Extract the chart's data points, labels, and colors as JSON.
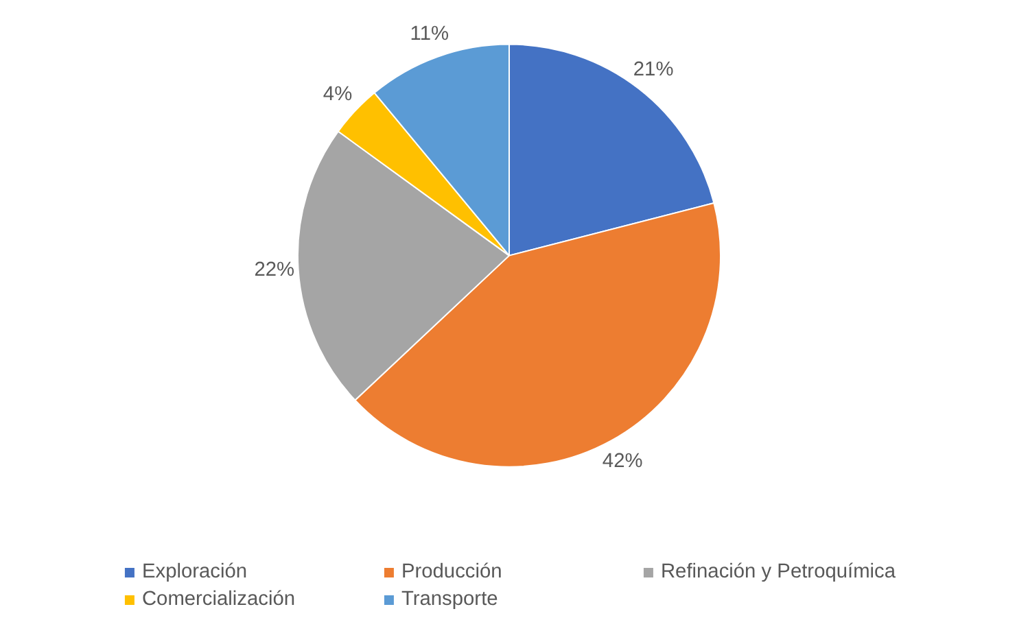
{
  "chart_data": {
    "type": "pie",
    "categories": [
      "Exploración",
      "Producción",
      "Refinación y Petroquímica",
      "Comercialización",
      "Transporte"
    ],
    "values": [
      21,
      42,
      22,
      4,
      11
    ],
    "colors": [
      "#4472c4",
      "#ed7d31",
      "#a5a5a5",
      "#ffc000",
      "#5b9bd5"
    ],
    "value_labels": [
      "21%",
      "42%",
      "22%",
      "4%",
      "11%"
    ],
    "legend": "bottom"
  }
}
